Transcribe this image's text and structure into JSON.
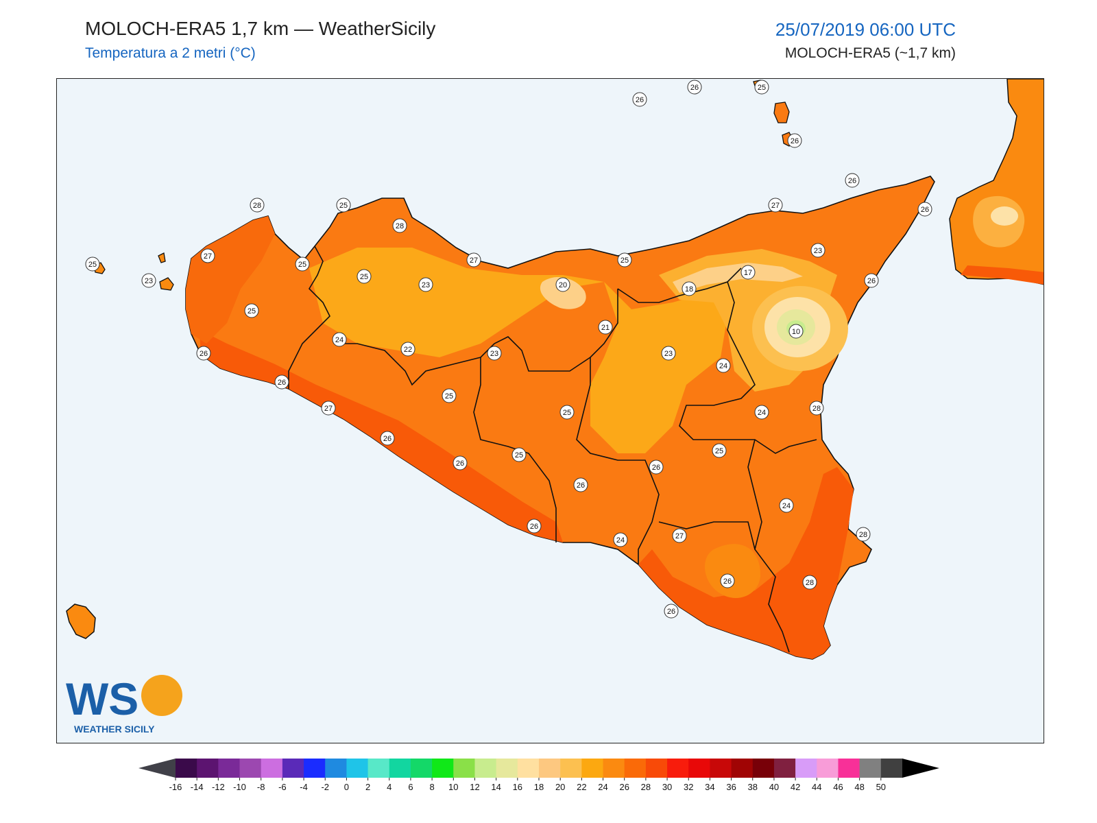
{
  "header": {
    "title": "MOLOCH-ERA5 1,7 km — WeatherSicily",
    "subtitle": "Temperatura a 2 metri (°C)",
    "datetime": "25/07/2019 06:00 UTC",
    "model": "MOLOCH-ERA5 (~1,7 km)"
  },
  "logo": {
    "letters": "WS",
    "text": "WEATHER SICILY"
  },
  "station_labels": [
    "26",
    "26",
    "25",
    "26",
    "26",
    "27",
    "26",
    "28",
    "28",
    "25",
    "27",
    "25",
    "25",
    "25",
    "23",
    "27",
    "25",
    "20",
    "17",
    "18",
    "23",
    "26",
    "10",
    "21",
    "22",
    "24",
    "25",
    "23",
    "23",
    "23",
    "24",
    "26",
    "26",
    "24",
    "25",
    "28",
    "27",
    "26",
    "26",
    "25",
    "25",
    "25",
    "26",
    "26",
    "24",
    "28",
    "26",
    "24",
    "27",
    "28",
    "26",
    "26"
  ],
  "colorbar": {
    "ticks": [
      "-16",
      "-14",
      "-12",
      "-10",
      "-8",
      "-6",
      "-4",
      "-2",
      "0",
      "2",
      "4",
      "6",
      "8",
      "10",
      "12",
      "14",
      "16",
      "18",
      "20",
      "22",
      "24",
      "26",
      "28",
      "30",
      "32",
      "34",
      "36",
      "38",
      "40",
      "42",
      "44",
      "46",
      "48",
      "50"
    ],
    "colors": [
      "#3a0a4a",
      "#5c1470",
      "#7a2a98",
      "#9c48b0",
      "#cc6ee0",
      "#5a2ab8",
      "#1a2cff",
      "#1f8ae0",
      "#1fc4e8",
      "#58e8c8",
      "#12d6a0",
      "#14d868",
      "#10e818",
      "#8ae048",
      "#c8ec8e",
      "#e6e89c",
      "#ffe0a0",
      "#fdc880",
      "#fcc050",
      "#fca810",
      "#fb8a10",
      "#fa6a08",
      "#f84a08",
      "#f81c0c",
      "#e80808",
      "#c80808",
      "#a00404",
      "#780008",
      "#802040",
      "#d89cf8",
      "#f89cd8",
      "#f83098",
      "#808080",
      "#404040"
    ],
    "under_color": "#404048",
    "over_color": "#000000"
  }
}
